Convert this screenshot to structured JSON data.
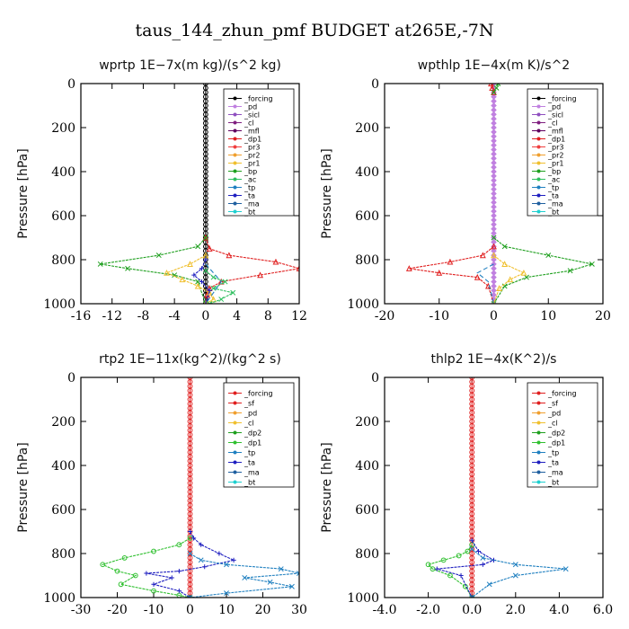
{
  "figure_title": "taus_144_zhun_pmf  BUDGET at265E,-7N",
  "chart_data": [
    {
      "type": "line",
      "title": "wprtp   1E−7x(m kg)/(s^2 kg)",
      "ylabel": "Pressure [hPa]",
      "xlim": [
        -16,
        12
      ],
      "ylim": [
        1000,
        0
      ],
      "xticks": [
        -16,
        -12,
        -8,
        -4,
        0,
        4,
        8,
        12
      ],
      "xtick_labels": [
        "-16",
        "-12",
        "-8",
        "-4",
        "0",
        "4",
        "8",
        "12"
      ],
      "yticks": [
        0,
        200,
        400,
        600,
        800,
        1000
      ],
      "ytick_labels": [
        "0",
        "200",
        "400",
        "600",
        "800",
        "1000"
      ],
      "legend": [
        "_forcing",
        "_pd",
        "_sicl",
        "_cl",
        "_mfl",
        "_dp1",
        "_pr3",
        "_pr2",
        "_pr1",
        "_bp",
        "_ac",
        "_tp",
        "_ta",
        "_ma",
        "_bt"
      ],
      "legend_position": "top-right",
      "series": [
        {
          "name": "_forcing",
          "color": "#000000",
          "marker": "circle",
          "x": [
            0,
            0,
            0,
            0,
            0,
            0,
            0,
            0,
            0,
            0,
            0,
            0,
            0,
            0,
            0,
            0,
            0,
            0,
            0,
            0,
            0,
            0,
            0,
            0,
            0,
            0,
            0,
            0,
            0,
            0,
            0,
            0,
            0,
            0,
            0,
            0,
            0,
            0,
            0,
            0,
            0,
            0,
            0,
            0,
            0,
            0,
            0,
            0,
            0,
            0,
            0
          ],
          "y": [
            0,
            20,
            40,
            60,
            80,
            100,
            120,
            140,
            160,
            180,
            200,
            220,
            240,
            260,
            280,
            300,
            320,
            340,
            360,
            380,
            400,
            420,
            440,
            460,
            480,
            500,
            520,
            540,
            560,
            580,
            600,
            620,
            640,
            660,
            680,
            700,
            720,
            740,
            760,
            780,
            800,
            820,
            840,
            860,
            880,
            900,
            920,
            940,
            960,
            980,
            1000
          ]
        },
        {
          "name": "_dp1",
          "color": "#e02020",
          "marker": "triangle",
          "x": [
            0,
            0.5,
            3,
            9,
            12,
            7,
            2,
            0.5,
            0.2,
            0
          ],
          "y": [
            700,
            750,
            780,
            810,
            840,
            870,
            900,
            930,
            960,
            1000
          ]
        },
        {
          "name": "_bp",
          "color": "#20a020",
          "marker": "x",
          "x": [
            0,
            -1,
            -6,
            -13.5,
            -10,
            -4,
            -1,
            0
          ],
          "y": [
            700,
            740,
            780,
            820,
            840,
            870,
            900,
            1000
          ]
        },
        {
          "name": "_pr1",
          "color": "#f0c030",
          "marker": "triangle",
          "x": [
            0,
            -2,
            -5,
            -3,
            -1,
            0.5,
            1,
            0
          ],
          "y": [
            780,
            820,
            860,
            890,
            920,
            950,
            980,
            1000
          ]
        },
        {
          "name": "_ac",
          "color": "#30c060",
          "marker": "x",
          "x": [
            0,
            1,
            2.5,
            1,
            3.5,
            2,
            0.5
          ],
          "y": [
            850,
            880,
            900,
            930,
            950,
            980,
            1000
          ]
        },
        {
          "name": "_tp",
          "color": "#2020c0",
          "marker": "plus",
          "x": [
            0,
            -0.5,
            -1.5,
            -0.5,
            0.5,
            0
          ],
          "y": [
            800,
            840,
            870,
            900,
            940,
            1000
          ]
        },
        {
          "name": "_ma",
          "color": "#2080c0",
          "marker": "none",
          "x": [
            0,
            1,
            2,
            1,
            0
          ],
          "y": [
            820,
            860,
            900,
            950,
            1000
          ]
        }
      ]
    },
    {
      "type": "line",
      "title": "wpthlp   1E−4x(m K)/s^2",
      "ylabel": "Pressure [hPa]",
      "xlim": [
        -20,
        20
      ],
      "ylim": [
        1000,
        0
      ],
      "xticks": [
        -20,
        -10,
        0,
        10,
        20
      ],
      "xtick_labels": [
        "-20",
        "-10",
        "0",
        "10",
        "20"
      ],
      "yticks": [
        0,
        200,
        400,
        600,
        800,
        1000
      ],
      "ytick_labels": [
        "0",
        "200",
        "400",
        "600",
        "800",
        "1000"
      ],
      "legend": [
        "_forcing",
        "_pd",
        "_sicl",
        "_cl",
        "_mfl",
        "_dp1",
        "_pr3",
        "_pr2",
        "_pr1",
        "_bp",
        "_ac",
        "_tp",
        "_ta",
        "_ma",
        "_bt"
      ],
      "legend_position": "top-right",
      "series": [
        {
          "name": "_forcing",
          "color": "#c080e0",
          "marker": "diamond",
          "x": [
            0,
            0,
            0,
            0,
            0,
            0,
            0,
            0,
            0,
            0,
            0,
            0,
            0,
            0,
            0,
            0,
            0,
            0,
            0,
            0,
            0,
            0,
            0,
            0,
            0,
            0,
            0,
            0,
            0,
            0,
            0,
            0,
            0,
            0,
            0,
            0,
            0,
            0,
            0,
            0,
            0,
            0,
            0,
            0,
            0,
            0,
            0,
            0,
            0,
            0,
            0
          ],
          "y": [
            0,
            20,
            40,
            60,
            80,
            100,
            120,
            140,
            160,
            180,
            200,
            220,
            240,
            260,
            280,
            300,
            320,
            340,
            360,
            380,
            400,
            420,
            440,
            460,
            480,
            500,
            520,
            540,
            560,
            580,
            600,
            620,
            640,
            660,
            680,
            700,
            720,
            740,
            760,
            780,
            800,
            820,
            840,
            860,
            880,
            900,
            920,
            940,
            960,
            980,
            1000
          ]
        },
        {
          "name": "_cl",
          "color": "#e02020",
          "marker": "triangle",
          "x": [
            -0.5,
            -0.3,
            0
          ],
          "y": [
            0,
            20,
            40
          ]
        },
        {
          "name": "_bp",
          "color": "#20a020",
          "marker": "x",
          "x": [
            0.8,
            0.5,
            0
          ],
          "y": [
            0,
            20,
            40
          ]
        },
        {
          "name": "_dp1",
          "color": "#e02020",
          "marker": "triangle",
          "x": [
            0,
            -2,
            -8,
            -15.5,
            -10,
            -3,
            -1,
            0
          ],
          "y": [
            740,
            780,
            810,
            840,
            860,
            880,
            920,
            1000
          ]
        },
        {
          "name": "_bp",
          "color": "#20a020",
          "marker": "x",
          "x": [
            0,
            2,
            10,
            18,
            14,
            6,
            2,
            0
          ],
          "y": [
            700,
            740,
            780,
            820,
            850,
            880,
            920,
            1000
          ]
        },
        {
          "name": "_pr1",
          "color": "#f0c030",
          "marker": "triangle",
          "x": [
            0,
            2,
            5.5,
            3,
            1,
            0
          ],
          "y": [
            780,
            820,
            860,
            890,
            930,
            1000
          ]
        },
        {
          "name": "_ma",
          "color": "#2080c0",
          "marker": "none",
          "x": [
            0,
            -3,
            -1,
            0
          ],
          "y": [
            820,
            860,
            900,
            1000
          ]
        }
      ]
    },
    {
      "type": "line",
      "title": "rtp2   1E−11x(kg^2)/(kg^2 s)",
      "ylabel": "Pressure [hPa]",
      "xlim": [
        -30,
        30
      ],
      "ylim": [
        1000,
        0
      ],
      "xticks": [
        -30,
        -20,
        -10,
        0,
        10,
        20,
        30
      ],
      "xtick_labels": [
        "-30",
        "-20",
        "-10",
        "0",
        "10",
        "20",
        "30"
      ],
      "yticks": [
        0,
        200,
        400,
        600,
        800,
        1000
      ],
      "ytick_labels": [
        "0",
        "200",
        "400",
        "600",
        "800",
        "1000"
      ],
      "legend": [
        "_forcing",
        "_sf",
        "_pd",
        "_cl",
        "_dp2",
        "_dp1",
        "_tp",
        "_ta",
        "_ma",
        "_bt"
      ],
      "legend_position": "top-right",
      "series": [
        {
          "name": "_forcing",
          "color": "#e02020",
          "marker": "circle",
          "x": [
            0,
            0,
            0,
            0,
            0,
            0,
            0,
            0,
            0,
            0,
            0,
            0,
            0,
            0,
            0,
            0,
            0,
            0,
            0,
            0,
            0,
            0,
            0,
            0,
            0,
            0,
            0,
            0,
            0,
            0,
            0,
            0,
            0,
            0,
            0,
            0,
            0,
            0,
            0,
            0,
            0,
            0,
            0,
            0,
            0,
            0,
            0,
            0,
            0,
            0,
            0
          ],
          "y": [
            0,
            20,
            40,
            60,
            80,
            100,
            120,
            140,
            160,
            180,
            200,
            220,
            240,
            260,
            280,
            300,
            320,
            340,
            360,
            380,
            400,
            420,
            440,
            460,
            480,
            500,
            520,
            540,
            560,
            580,
            600,
            620,
            640,
            660,
            680,
            700,
            720,
            740,
            760,
            780,
            800,
            820,
            840,
            860,
            880,
            900,
            920,
            940,
            960,
            980,
            1000
          ]
        },
        {
          "name": "_dp1",
          "color": "#30c030",
          "marker": "circle",
          "x": [
            0,
            -3,
            -10,
            -18,
            -24,
            -20,
            -15,
            -19,
            -10,
            -3,
            0
          ],
          "y": [
            730,
            760,
            790,
            820,
            850,
            880,
            900,
            940,
            970,
            990,
            1000
          ]
        },
        {
          "name": "_tp",
          "color": "#2020c0",
          "marker": "plus",
          "x": [
            0,
            1,
            3,
            8,
            12,
            4,
            -3,
            -12,
            -5,
            -10,
            -3,
            0
          ],
          "y": [
            700,
            730,
            760,
            800,
            830,
            860,
            880,
            890,
            910,
            940,
            970,
            1000
          ]
        },
        {
          "name": "_ta",
          "color": "#2080c0",
          "marker": "x",
          "x": [
            0,
            3,
            10,
            25,
            30,
            15,
            22,
            28,
            10,
            0
          ],
          "y": [
            800,
            830,
            850,
            870,
            890,
            910,
            930,
            950,
            980,
            1000
          ]
        }
      ]
    },
    {
      "type": "line",
      "title": "thlp2   1E−4x(K^2)/s",
      "ylabel": "Pressure [hPa]",
      "xlim": [
        -4,
        6
      ],
      "ylim": [
        1000,
        0
      ],
      "xticks": [
        -4,
        -2,
        0,
        2,
        4,
        6
      ],
      "xtick_labels": [
        "-4.0",
        "-2.0",
        "0.0",
        "2.0",
        "4.0",
        "6.0"
      ],
      "yticks": [
        0,
        200,
        400,
        600,
        800,
        1000
      ],
      "ytick_labels": [
        "0",
        "200",
        "400",
        "600",
        "800",
        "1000"
      ],
      "legend": [
        "_forcing",
        "_sf",
        "_pd",
        "_cl",
        "_dp2",
        "_dp1",
        "_tp",
        "_ta",
        "_ma",
        "_bt"
      ],
      "legend_position": "top-right",
      "series": [
        {
          "name": "_forcing",
          "color": "#e02020",
          "marker": "circle",
          "x": [
            0,
            0,
            0,
            0,
            0,
            0,
            0,
            0,
            0,
            0,
            0,
            0,
            0,
            0,
            0,
            0,
            0,
            0,
            0,
            0,
            0,
            0,
            0,
            0,
            0,
            0,
            0,
            0,
            0,
            0,
            0,
            0,
            0,
            0,
            0,
            0,
            0,
            0,
            0,
            0,
            0,
            0,
            0,
            0,
            0,
            0,
            0,
            0,
            0,
            0,
            0
          ],
          "y": [
            0,
            20,
            40,
            60,
            80,
            100,
            120,
            140,
            160,
            180,
            200,
            220,
            240,
            260,
            280,
            300,
            320,
            340,
            360,
            380,
            400,
            420,
            440,
            460,
            480,
            500,
            520,
            540,
            560,
            580,
            600,
            620,
            640,
            660,
            680,
            700,
            720,
            740,
            760,
            780,
            800,
            820,
            840,
            860,
            880,
            900,
            920,
            940,
            960,
            980,
            1000
          ]
        },
        {
          "name": "_dp1",
          "color": "#30c030",
          "marker": "circle",
          "x": [
            0,
            -0.2,
            -0.6,
            -1.3,
            -2,
            -1.8,
            -1,
            -0.3,
            0
          ],
          "y": [
            760,
            790,
            810,
            830,
            850,
            870,
            900,
            950,
            1000
          ]
        },
        {
          "name": "_tp",
          "color": "#2020c0",
          "marker": "plus",
          "x": [
            0,
            0.3,
            1,
            0.5,
            -1.6,
            -0.5,
            0
          ],
          "y": [
            740,
            790,
            830,
            850,
            870,
            900,
            1000
          ]
        },
        {
          "name": "_ta",
          "color": "#2080c0",
          "marker": "x",
          "x": [
            0,
            0.5,
            2,
            4.3,
            2,
            0.8,
            0
          ],
          "y": [
            780,
            820,
            850,
            870,
            900,
            940,
            1000
          ]
        }
      ]
    }
  ]
}
